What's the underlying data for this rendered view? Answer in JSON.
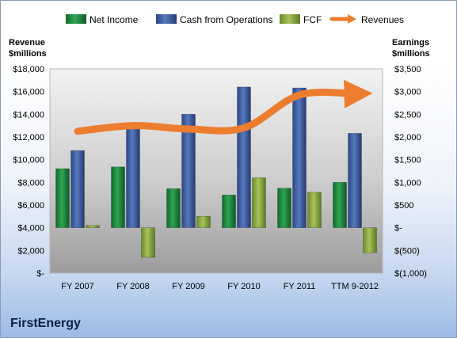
{
  "chart_data": {
    "type": "bar",
    "title": "FirstEnergy",
    "categories": [
      "FY 2007",
      "FY 2008",
      "FY 2009",
      "FY 2010",
      "FY 2011",
      "TTM 9-2012"
    ],
    "left_axis": {
      "label_line1": "Revenue",
      "label_line2": "$millions",
      "range": [
        0,
        18000
      ],
      "ticks": [
        "$18,000",
        "$16,000",
        "$14,000",
        "$12,000",
        "$10,000",
        "$8,000",
        "$6,000",
        "$4,000",
        "$2,000",
        "$-"
      ]
    },
    "right_axis": {
      "label_line1": "Earnings",
      "label_line2": "$millions",
      "range": [
        -1000,
        3500
      ],
      "ticks": [
        "$3,500",
        "$3,000",
        "$2,500",
        "$2,000",
        "$1,500",
        "$1,000",
        "$500",
        "$-",
        "$(500)",
        "$(1,000)"
      ]
    },
    "series": [
      {
        "name": "Net Income",
        "axis": "right",
        "kind": "bar",
        "color": "#1f8a3f",
        "values": [
          1300,
          1340,
          860,
          720,
          870,
          1000
        ]
      },
      {
        "name": "Cash from Operations",
        "axis": "right",
        "kind": "bar",
        "color": "#3e5fa3",
        "values": [
          1700,
          2200,
          2500,
          3100,
          3080,
          2080
        ]
      },
      {
        "name": "FCF",
        "axis": "right",
        "kind": "bar",
        "color": "#8aaa3c",
        "values": [
          50,
          -650,
          250,
          1100,
          780,
          -550
        ]
      },
      {
        "name": "Revenues",
        "axis": "left",
        "kind": "line",
        "color": "#ec7d2e",
        "values": [
          12500,
          13000,
          12700,
          12800,
          15700,
          15800
        ]
      }
    ],
    "legend_position": "top",
    "grid": false
  }
}
